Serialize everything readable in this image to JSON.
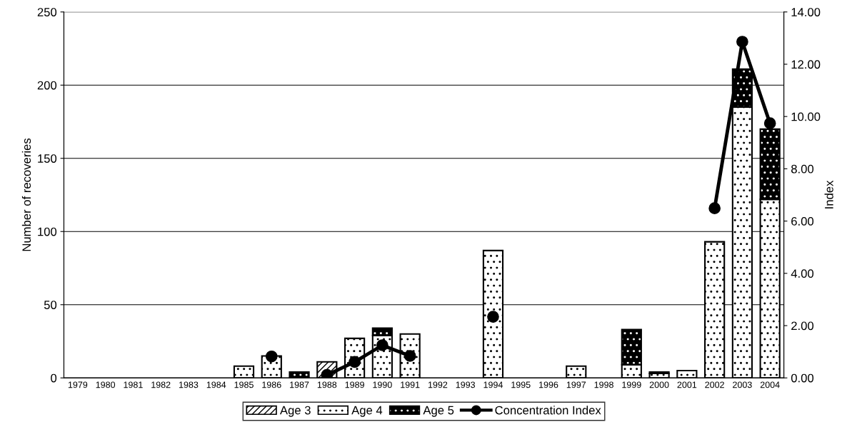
{
  "chart_data": {
    "type": "bar",
    "stacked": true,
    "ylabel": "Number of recoveries",
    "y2label": "Index",
    "categories": [
      "1979",
      "1980",
      "1981",
      "1982",
      "1983",
      "1984",
      "1985",
      "1986",
      "1987",
      "1988",
      "1989",
      "1990",
      "1991",
      "1992",
      "1993",
      "1994",
      "1995",
      "1996",
      "1997",
      "1998",
      "1999",
      "2000",
      "2001",
      "2002",
      "2003",
      "2004"
    ],
    "series": [
      {
        "name": "Age 3",
        "color": "#ffffff",
        "values": [
          null,
          null,
          null,
          null,
          null,
          null,
          null,
          null,
          null,
          11,
          null,
          null,
          null,
          null,
          null,
          null,
          null,
          null,
          null,
          null,
          null,
          null,
          null,
          null,
          null,
          null
        ]
      },
      {
        "name": "Age 4",
        "color": "#ffffff",
        "values": [
          null,
          null,
          null,
          null,
          null,
          null,
          8,
          15,
          null,
          null,
          27,
          29,
          30,
          null,
          null,
          87,
          null,
          null,
          8,
          null,
          9,
          3,
          5,
          93,
          185,
          122
        ]
      },
      {
        "name": "Age 5",
        "color": "#000000",
        "values": [
          null,
          null,
          null,
          null,
          null,
          null,
          null,
          null,
          4,
          null,
          null,
          5,
          null,
          null,
          null,
          null,
          null,
          null,
          null,
          null,
          24,
          1,
          null,
          null,
          26,
          48
        ]
      },
      {
        "name": "Concentration Index",
        "type": "line",
        "axis": "y2",
        "color": "#000000",
        "values": [
          null,
          null,
          null,
          null,
          null,
          null,
          null,
          0.82,
          null,
          0.11,
          0.61,
          1.25,
          0.84,
          null,
          null,
          2.34,
          null,
          null,
          null,
          null,
          null,
          null,
          null,
          6.49,
          12.86,
          9.74
        ]
      }
    ],
    "ylim": [
      0,
      250
    ],
    "yticks": [
      0,
      50,
      100,
      150,
      200,
      250
    ],
    "y2lim": [
      0,
      14
    ],
    "y2ticks": [
      {
        "value": 0,
        "label": "0.00"
      },
      {
        "value": 2,
        "label": "2.00"
      },
      {
        "value": 4,
        "label": "4.00"
      },
      {
        "value": 6,
        "label": "6.00"
      },
      {
        "value": 8,
        "label": "8.00"
      },
      {
        "value": 10,
        "label": "10.00"
      },
      {
        "value": 12,
        "label": "12.00"
      },
      {
        "value": 14,
        "label": "14.00"
      }
    ],
    "grid": "y",
    "legend": "bottom",
    "marker": "circle",
    "line_style": "solid"
  }
}
